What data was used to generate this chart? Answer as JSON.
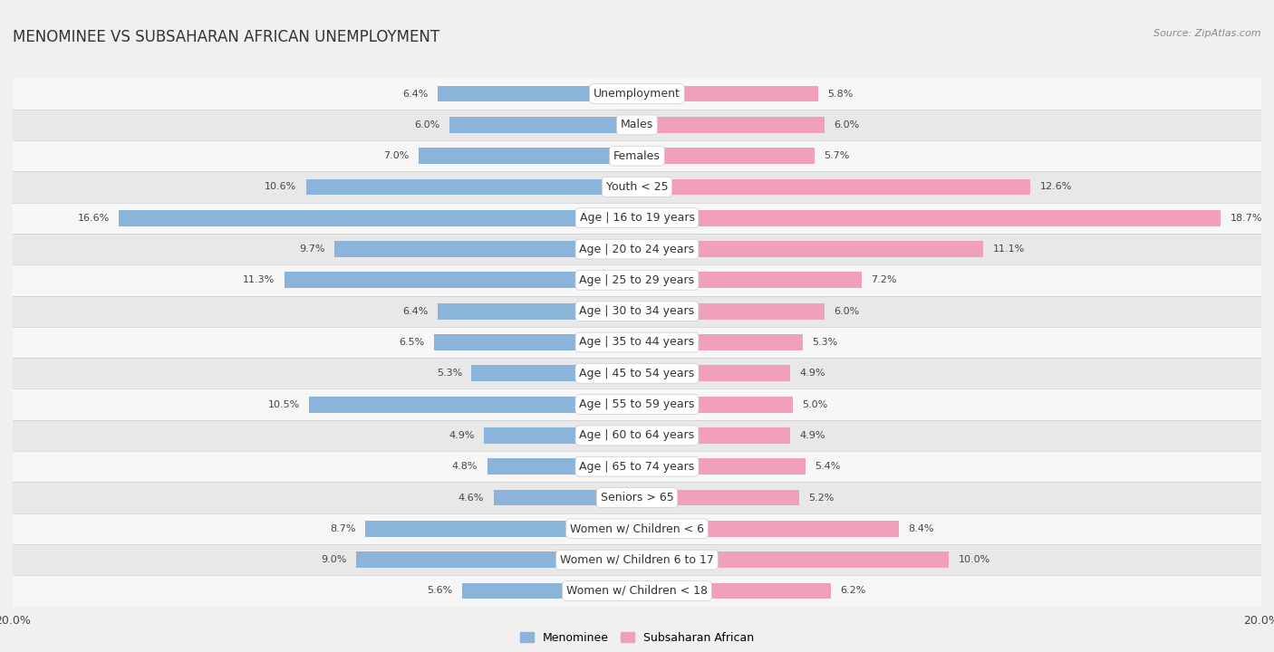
{
  "title": "MENOMINEE VS SUBSAHARAN AFRICAN UNEMPLOYMENT",
  "source": "Source: ZipAtlas.com",
  "categories": [
    "Unemployment",
    "Males",
    "Females",
    "Youth < 25",
    "Age | 16 to 19 years",
    "Age | 20 to 24 years",
    "Age | 25 to 29 years",
    "Age | 30 to 34 years",
    "Age | 35 to 44 years",
    "Age | 45 to 54 years",
    "Age | 55 to 59 years",
    "Age | 60 to 64 years",
    "Age | 65 to 74 years",
    "Seniors > 65",
    "Women w/ Children < 6",
    "Women w/ Children 6 to 17",
    "Women w/ Children < 18"
  ],
  "left_values": [
    6.4,
    6.0,
    7.0,
    10.6,
    16.6,
    9.7,
    11.3,
    6.4,
    6.5,
    5.3,
    10.5,
    4.9,
    4.8,
    4.6,
    8.7,
    9.0,
    5.6
  ],
  "right_values": [
    5.8,
    6.0,
    5.7,
    12.6,
    18.7,
    11.1,
    7.2,
    6.0,
    5.3,
    4.9,
    5.0,
    4.9,
    5.4,
    5.2,
    8.4,
    10.0,
    6.2
  ],
  "left_color": "#8ab4d9",
  "right_color": "#f0a0b8",
  "left_label": "Menominee",
  "right_label": "Subsaharan African",
  "axis_max": 20.0,
  "bg_color": "#f0f0f0",
  "row_colors_even": "#f7f7f7",
  "row_colors_odd": "#e8e8e8",
  "separator_color": "#cccccc",
  "title_fontsize": 12,
  "label_fontsize": 9,
  "value_fontsize": 8,
  "source_fontsize": 8
}
